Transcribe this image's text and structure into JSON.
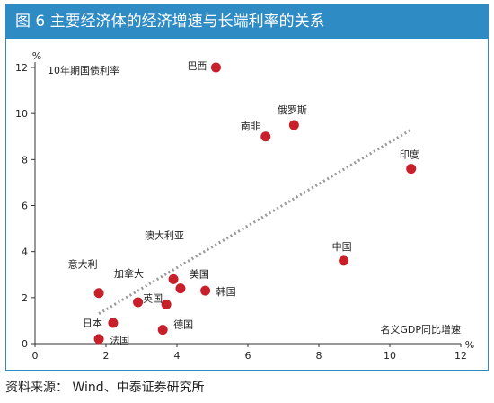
{
  "title": "图 6  主要经济体的经济增速与长端利率的关系",
  "source": "资料来源：  Wind、中泰证券研究所",
  "colors": {
    "accent": "#2f8bc4",
    "point": "#c8202a",
    "trend": "#9a9a9a"
  },
  "chart_data": {
    "type": "scatter",
    "xlabel": "名义GDP同比增速",
    "ylabel": "10年期国债利率",
    "x_unit": "%",
    "y_unit": "%",
    "xlim": [
      0,
      12
    ],
    "ylim": [
      0,
      12
    ],
    "xticks": [
      0,
      2,
      4,
      6,
      8,
      10,
      12
    ],
    "yticks": [
      0,
      2,
      4,
      6,
      8,
      10,
      12
    ],
    "grid": false,
    "trendline": {
      "style": "dotted",
      "start": [
        1.8,
        1.3
      ],
      "end": [
        10.6,
        9.3
      ]
    },
    "points": [
      {
        "name": "巴西",
        "x": 5.1,
        "y": 12.0
      },
      {
        "name": "俄罗斯",
        "x": 7.3,
        "y": 9.5
      },
      {
        "name": "南非",
        "x": 6.5,
        "y": 9.0
      },
      {
        "name": "印度",
        "x": 10.6,
        "y": 7.6
      },
      {
        "name": "中国",
        "x": 8.7,
        "y": 3.6
      },
      {
        "name": "澳大利亚",
        "x": 3.9,
        "y": 2.8
      },
      {
        "name": "美国",
        "x": 4.1,
        "y": 2.4
      },
      {
        "name": "韩国",
        "x": 4.8,
        "y": 2.3
      },
      {
        "name": "加拿大",
        "x": 2.9,
        "y": 1.8
      },
      {
        "name": "英国",
        "x": 3.7,
        "y": 1.7
      },
      {
        "name": "意大利",
        "x": 1.8,
        "y": 2.2
      },
      {
        "name": "日本",
        "x": 2.2,
        "y": 0.9
      },
      {
        "name": "德国",
        "x": 3.6,
        "y": 0.6
      },
      {
        "name": "法国",
        "x": 1.8,
        "y": 0.2
      }
    ]
  }
}
